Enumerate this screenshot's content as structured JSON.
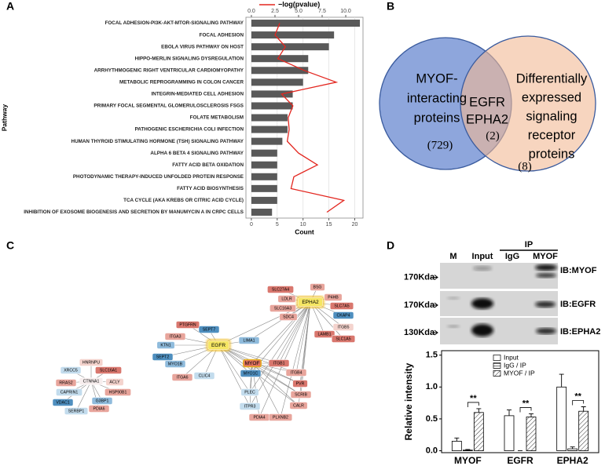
{
  "panel_labels": [
    "A",
    "B",
    "C",
    "D"
  ],
  "chart_data": [
    {
      "type": "bar",
      "orientation": "horizontal",
      "categories": [
        "FOCAL ADHESION-PI3K-AKT-MTOR-SIGNALING PATHWAY",
        "FOCAL ADHESION",
        "EBOLA VIRUS PATHWAY ON HOST",
        "HIPPO-MERLIN SIGNALING DYSREGULATION",
        "ARRHYTHMOGENIC RIGHT VENTRICULAR CARDIOMYOPATHY",
        "METABOLIC REPROGRAMMING IN COLON CANCER",
        "INTEGRIN-MEDIATED CELL ADHESION",
        "PRIMARY FOCAL SEGMENTAL GLOMERULOSCLEROSIS FSGS",
        "FOLATE METABOLISM",
        "PATHOGENIC ESCHERICHIA COLI INFECTION",
        "HUMAN THYROID STIMULATING HORMONE (TSH) SIGNALING PATHWAY",
        "ALPHA 6 BETA 4 SIGNALING PATHWAY",
        "FATTY ACID BETA OXIDATION",
        "PHOTODYNAMIC THERAPY-INDUCED UNFOLDED PROTEIN RESPONSE",
        "FATTY ACID BIOSYNTHESIS",
        "TCA CYCLE (AKA KREBS OR CITRIC ACID CYCLE)",
        "INHIBITION OF EXOSOME BIOGENESIS AND SECRETION BY MANUMYCIN A IN CRPC CELLS"
      ],
      "values": [
        21,
        16,
        15,
        11,
        11,
        10,
        8,
        8,
        7,
        7,
        6,
        5,
        5,
        5,
        5,
        5,
        4
      ],
      "color": "#595959",
      "xlabel": "Count",
      "ylabel": "Pathway",
      "xlim": [
        -1.05,
        21.6
      ],
      "xticks": [
        0,
        5,
        10,
        15,
        20
      ],
      "grid": true,
      "line": {
        "name": "−log(pvalue)",
        "color": "#e3261f",
        "values": [
          3.0,
          2.5,
          3.6,
          2.8,
          5.6,
          9.0,
          3.2,
          4.4,
          3.9,
          4.0,
          3.8,
          5.0,
          7.0,
          4.5,
          4.2,
          9.8,
          8.0
        ]
      },
      "x2lim": [
        -0.58,
        11.83
      ],
      "x2ticks": [
        {
          "value": 0,
          "label": "0.0"
        },
        2.5,
        {
          "value": 5,
          "label": "5.0"
        },
        7.5,
        {
          "value": 10,
          "label": "10.0"
        }
      ]
    },
    {
      "type": "bar",
      "categories": [
        "MYOF",
        "EGFR",
        "EPHA2"
      ],
      "ylabel": "Relative intensity",
      "ylim": [
        -0.03,
        1.57
      ],
      "yticks": [
        {
          "value": 0,
          "label": "0.0"
        },
        0.5,
        {
          "value": 1,
          "label": "1.0"
        },
        1.5
      ],
      "legend": "top",
      "series": [
        {
          "name": "Input",
          "color": "#ffffff",
          "pattern": "none",
          "values": [
            0.15,
            0.55,
            1.0
          ],
          "errors": [
            0.05,
            0.09,
            0.2
          ]
        },
        {
          "name": "IgG / IP",
          "color": "#ffffff",
          "pattern": "horizontal",
          "values": [
            0.01,
            0.0,
            0.03
          ],
          "errors": [
            0.01,
            0.0,
            0.03
          ]
        },
        {
          "name": "MYOF / IP",
          "color": "#ffffff",
          "pattern": "diagonal",
          "values": [
            0.6,
            0.53,
            0.62
          ],
          "errors": [
            0.06,
            0.05,
            0.07
          ]
        }
      ],
      "annotations": [
        "**",
        "**",
        "**"
      ]
    }
  ],
  "venn": {
    "left": {
      "lines": [
        "MYOF-",
        "interacting",
        "proteins"
      ],
      "count": "(729)"
    },
    "overlap": {
      "lines": [
        "EGFR",
        "EPHA2"
      ],
      "count": "(2)"
    },
    "right": {
      "lines": [
        "Differentially",
        "expressed",
        "signaling",
        "receptor",
        "proteins"
      ],
      "count": "(8)"
    }
  },
  "network": {
    "nodes": [
      "EGFR",
      "PTGFRN",
      "SEPT7",
      "ITGA3",
      "KTN1",
      "LIMA1",
      "SEPT2",
      "MYO1B",
      "ITGA6",
      "CLIC4",
      "EPHA2",
      "SLC27A4",
      "BSG",
      "LDLR",
      "P4HB",
      "SLC16A3",
      "SLC7A5",
      "SDC4",
      "CKAP4",
      "ITGB5",
      "LAMB1",
      "SLC1A5",
      "MYOF",
      "ITGB1",
      "MYO1C",
      "ITGB4",
      "PVR",
      "SCRIB",
      "PLEC",
      "ITPR3",
      "CALR",
      "PDIA4",
      "PLXNB2",
      "CTNNA1",
      "HNRNPU",
      "XRCC5",
      "SLC16A1",
      "RRAS2",
      "ACLY",
      "CAPRIN1",
      "HSP90B1",
      "VDAC1",
      "G3BP1",
      "SERBP1",
      "PDIA6"
    ]
  },
  "blot": {
    "ip": "IP",
    "lanes": [
      "M",
      "Input",
      "IgG",
      "MYOF"
    ],
    "markers": [
      "170Kda",
      "170Kda",
      "130Kda"
    ],
    "antibodies": [
      "IB:MYOF",
      "IB:EGFR",
      "IB:EPHA2"
    ]
  }
}
